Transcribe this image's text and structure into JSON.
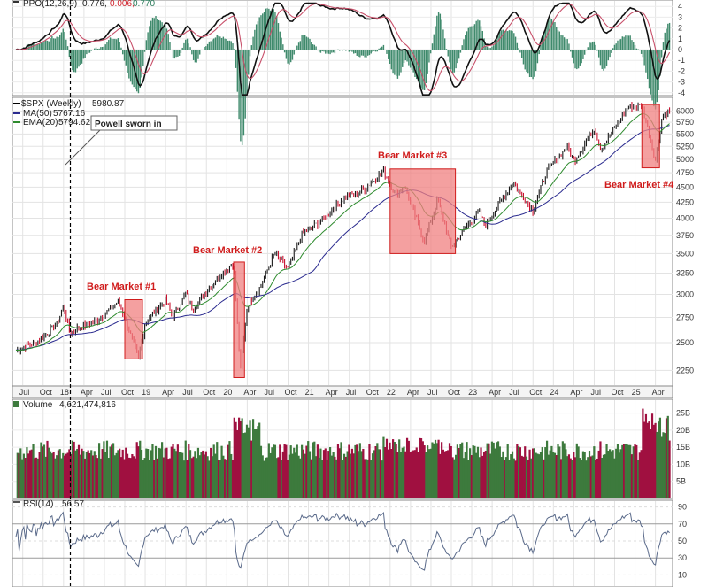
{
  "panels": {
    "ppo": {
      "legend": "PPO(12,26,9)",
      "values": [
        "0.776,",
        "0.006,",
        "0.770"
      ],
      "value_colors": [
        "#000000",
        "#d0202a",
        "#2a7a5a"
      ],
      "ticks": [
        "4",
        "3",
        "2",
        "1",
        "0",
        "-1",
        "-2",
        "-3",
        "-4"
      ]
    },
    "price": {
      "legend_symbol": "$SPX (Weekly)",
      "legend_value": "5980.87",
      "ma_label": "MA(50)",
      "ma_value": "5767.16",
      "ema_label": "EMA(20)",
      "ema_value": "5794.62",
      "ticks": [
        "6000",
        "5750",
        "5500",
        "5250",
        "5000",
        "4750",
        "4500",
        "4250",
        "4000",
        "3750",
        "3500",
        "3250",
        "3000",
        "2750",
        "2500",
        "2250"
      ],
      "colors": {
        "up": "#1a1a1a",
        "down": "#c8102e",
        "ma": "#2b2b8f",
        "ema": "#2e8b2e",
        "box_fill": "#f08080",
        "box_stroke": "#d01c1c"
      }
    },
    "volume": {
      "legend": "Volume",
      "legend_value": "4,621,474,816",
      "ticks": [
        "25B",
        "20B",
        "15B",
        "10B",
        "5B"
      ],
      "colors": {
        "up": "#3d7a3d",
        "down": "#a01040"
      }
    },
    "rsi": {
      "legend": "RSI(14)",
      "legend_value": "56.57",
      "ticks": [
        "90",
        "70",
        "50",
        "30",
        "10"
      ]
    }
  },
  "annotations": {
    "powell": "Powell sworn in",
    "bear_markets": [
      "Bear Market #1",
      "Bear Market #2",
      "Bear Market #3",
      "Bear Market #4"
    ]
  },
  "x_axis_labels": [
    "Jul",
    "Oct",
    "18",
    "Apr",
    "Jul",
    "Oct",
    "19",
    "Apr",
    "Jul",
    "Oct",
    "20",
    "Apr",
    "Jul",
    "Oct",
    "21",
    "Apr",
    "Jul",
    "Oct",
    "22",
    "Apr",
    "Jul",
    "Oct",
    "23",
    "Apr",
    "Jul",
    "Oct",
    "24",
    "Apr",
    "Jul",
    "Oct",
    "25",
    "Apr"
  ],
  "chart_data": {
    "type": "line",
    "title": "$SPX (Weekly)",
    "x_range": [
      "2017-06",
      "2025-06"
    ],
    "y_range": [
      2150,
      6150
    ],
    "series": [
      {
        "name": "$SPX (Weekly)",
        "points": [
          [
            "2017-06",
            2430
          ],
          [
            "2017-09",
            2500
          ],
          [
            "2017-12",
            2680
          ],
          [
            "2018-01",
            2870
          ],
          [
            "2018-02",
            2580
          ],
          [
            "2018-03",
            2640
          ],
          [
            "2018-06",
            2720
          ],
          [
            "2018-09",
            2920
          ],
          [
            "2018-10",
            2750
          ],
          [
            "2018-12",
            2350
          ],
          [
            "2019-01",
            2700
          ],
          [
            "2019-04",
            2940
          ],
          [
            "2019-05",
            2750
          ],
          [
            "2019-07",
            3010
          ],
          [
            "2019-08",
            2840
          ],
          [
            "2019-12",
            3230
          ],
          [
            "2020-02",
            3380
          ],
          [
            "2020-03",
            2240
          ],
          [
            "2020-04",
            2880
          ],
          [
            "2020-06",
            3100
          ],
          [
            "2020-08",
            3500
          ],
          [
            "2020-10",
            3300
          ],
          [
            "2020-12",
            3760
          ],
          [
            "2021-03",
            3970
          ],
          [
            "2021-06",
            4300
          ],
          [
            "2021-09",
            4450
          ],
          [
            "2021-12",
            4780
          ],
          [
            "2022-02",
            4350
          ],
          [
            "2022-03",
            4550
          ],
          [
            "2022-06",
            3670
          ],
          [
            "2022-08",
            4300
          ],
          [
            "2022-10",
            3580
          ],
          [
            "2022-12",
            3850
          ],
          [
            "2023-02",
            4100
          ],
          [
            "2023-03",
            3900
          ],
          [
            "2023-07",
            4580
          ],
          [
            "2023-10",
            4120
          ],
          [
            "2023-12",
            4770
          ],
          [
            "2024-03",
            5250
          ],
          [
            "2024-04",
            4970
          ],
          [
            "2024-07",
            5620
          ],
          [
            "2024-08",
            5200
          ],
          [
            "2024-12",
            6090
          ],
          [
            "2025-02",
            6140
          ],
          [
            "2025-04",
            4980
          ],
          [
            "2025-05",
            5900
          ],
          [
            "2025-06",
            5981
          ]
        ]
      },
      {
        "name": "MA(50)",
        "last": 5767.16
      },
      {
        "name": "EMA(20)",
        "last": 5794.62
      }
    ],
    "bear_market_boxes": [
      {
        "label": "Bear Market #1",
        "x": [
          "2018-10",
          "2018-12"
        ],
        "y": [
          2350,
          2940
        ]
      },
      {
        "label": "Bear Market #2",
        "x": [
          "2020-02",
          "2020-03"
        ],
        "y": [
          2190,
          3390
        ]
      },
      {
        "label": "Bear Market #3",
        "x": [
          "2022-01",
          "2022-10"
        ],
        "y": [
          3500,
          4820
        ]
      },
      {
        "label": "Bear Market #4",
        "x": [
          "2025-02",
          "2025-04"
        ],
        "y": [
          4840,
          6150
        ]
      }
    ],
    "event_marker": {
      "label": "Powell sworn in",
      "x": "2018-02"
    },
    "volume_last": 4621474816,
    "rsi_last": 56.57,
    "ppo_last": [
      0.776,
      0.006,
      0.77
    ]
  }
}
